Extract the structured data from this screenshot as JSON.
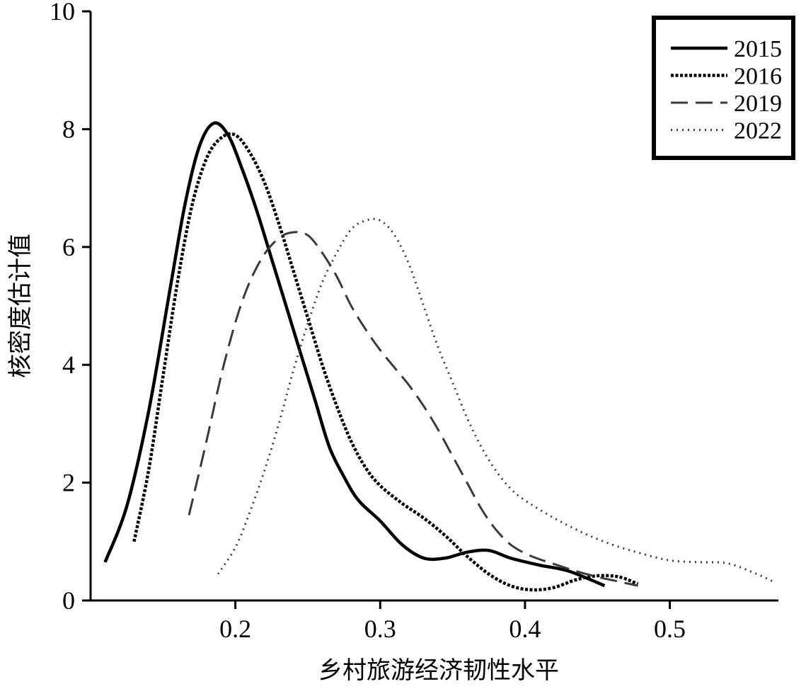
{
  "chart_data": {
    "type": "line",
    "title": "",
    "xlabel": "乡村旅游经济韧性水平",
    "ylabel": "核密度估计值",
    "xlim": [
      0.1,
      0.575
    ],
    "ylim": [
      0,
      10
    ],
    "x_ticks": [
      0.2,
      0.3,
      0.4,
      0.5
    ],
    "x_tick_labels": [
      "0.2",
      "0.3",
      "0.4",
      "0.5"
    ],
    "y_ticks": [
      0,
      2,
      4,
      6,
      8,
      10
    ],
    "y_tick_labels": [
      "0",
      "2",
      "4",
      "6",
      "8",
      "10"
    ],
    "grid": false,
    "legend_position": "top-right",
    "series": [
      {
        "name": "2015",
        "color": "#000000",
        "style": "solid",
        "points": [
          [
            0.11,
            0.65
          ],
          [
            0.125,
            1.6
          ],
          [
            0.14,
            3.2
          ],
          [
            0.155,
            5.3
          ],
          [
            0.165,
            6.7
          ],
          [
            0.175,
            7.7
          ],
          [
            0.185,
            8.1
          ],
          [
            0.195,
            7.9
          ],
          [
            0.205,
            7.3
          ],
          [
            0.215,
            6.6
          ],
          [
            0.225,
            5.8
          ],
          [
            0.235,
            5.0
          ],
          [
            0.245,
            4.2
          ],
          [
            0.255,
            3.4
          ],
          [
            0.265,
            2.6
          ],
          [
            0.275,
            2.1
          ],
          [
            0.285,
            1.7
          ],
          [
            0.3,
            1.35
          ],
          [
            0.315,
            0.95
          ],
          [
            0.33,
            0.72
          ],
          [
            0.345,
            0.72
          ],
          [
            0.36,
            0.82
          ],
          [
            0.375,
            0.85
          ],
          [
            0.39,
            0.72
          ],
          [
            0.41,
            0.6
          ],
          [
            0.43,
            0.5
          ],
          [
            0.455,
            0.25
          ]
        ]
      },
      {
        "name": "2016",
        "color": "#000000",
        "style": "dense-dash",
        "points": [
          [
            0.13,
            1.0
          ],
          [
            0.14,
            2.2
          ],
          [
            0.15,
            3.8
          ],
          [
            0.16,
            5.4
          ],
          [
            0.17,
            6.7
          ],
          [
            0.18,
            7.5
          ],
          [
            0.19,
            7.85
          ],
          [
            0.2,
            7.9
          ],
          [
            0.21,
            7.6
          ],
          [
            0.22,
            7.1
          ],
          [
            0.23,
            6.4
          ],
          [
            0.24,
            5.6
          ],
          [
            0.25,
            4.8
          ],
          [
            0.26,
            4.0
          ],
          [
            0.27,
            3.3
          ],
          [
            0.28,
            2.7
          ],
          [
            0.29,
            2.25
          ],
          [
            0.3,
            1.95
          ],
          [
            0.315,
            1.65
          ],
          [
            0.33,
            1.4
          ],
          [
            0.345,
            1.1
          ],
          [
            0.36,
            0.75
          ],
          [
            0.375,
            0.45
          ],
          [
            0.39,
            0.25
          ],
          [
            0.405,
            0.18
          ],
          [
            0.42,
            0.22
          ],
          [
            0.435,
            0.35
          ],
          [
            0.45,
            0.42
          ],
          [
            0.465,
            0.4
          ],
          [
            0.478,
            0.28
          ]
        ]
      },
      {
        "name": "2019",
        "color": "#3a3a3a",
        "style": "long-dash",
        "points": [
          [
            0.168,
            1.45
          ],
          [
            0.18,
            2.7
          ],
          [
            0.192,
            4.0
          ],
          [
            0.205,
            5.1
          ],
          [
            0.218,
            5.8
          ],
          [
            0.23,
            6.15
          ],
          [
            0.24,
            6.25
          ],
          [
            0.25,
            6.2
          ],
          [
            0.26,
            5.9
          ],
          [
            0.27,
            5.5
          ],
          [
            0.28,
            5.0
          ],
          [
            0.29,
            4.6
          ],
          [
            0.3,
            4.25
          ],
          [
            0.31,
            3.95
          ],
          [
            0.32,
            3.65
          ],
          [
            0.33,
            3.3
          ],
          [
            0.34,
            2.9
          ],
          [
            0.35,
            2.45
          ],
          [
            0.36,
            2.0
          ],
          [
            0.37,
            1.55
          ],
          [
            0.38,
            1.2
          ],
          [
            0.39,
            0.95
          ],
          [
            0.4,
            0.8
          ],
          [
            0.41,
            0.7
          ],
          [
            0.42,
            0.62
          ],
          [
            0.435,
            0.5
          ],
          [
            0.45,
            0.4
          ],
          [
            0.465,
            0.32
          ],
          [
            0.478,
            0.25
          ]
        ]
      },
      {
        "name": "2022",
        "color": "#3a3a3a",
        "style": "dotted",
        "points": [
          [
            0.188,
            0.45
          ],
          [
            0.2,
            0.9
          ],
          [
            0.21,
            1.5
          ],
          [
            0.22,
            2.2
          ],
          [
            0.23,
            3.0
          ],
          [
            0.24,
            3.9
          ],
          [
            0.25,
            4.7
          ],
          [
            0.26,
            5.4
          ],
          [
            0.27,
            5.9
          ],
          [
            0.28,
            6.3
          ],
          [
            0.29,
            6.45
          ],
          [
            0.3,
            6.45
          ],
          [
            0.31,
            6.2
          ],
          [
            0.32,
            5.7
          ],
          [
            0.33,
            5.0
          ],
          [
            0.34,
            4.3
          ],
          [
            0.35,
            3.7
          ],
          [
            0.36,
            3.1
          ],
          [
            0.37,
            2.6
          ],
          [
            0.38,
            2.2
          ],
          [
            0.39,
            1.9
          ],
          [
            0.4,
            1.7
          ],
          [
            0.42,
            1.4
          ],
          [
            0.44,
            1.15
          ],
          [
            0.46,
            0.95
          ],
          [
            0.48,
            0.8
          ],
          [
            0.5,
            0.68
          ],
          [
            0.52,
            0.65
          ],
          [
            0.54,
            0.63
          ],
          [
            0.56,
            0.45
          ],
          [
            0.573,
            0.3
          ]
        ]
      }
    ]
  }
}
